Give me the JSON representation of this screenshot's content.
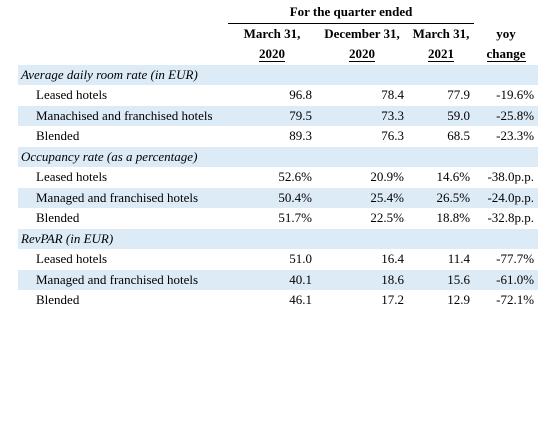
{
  "header": {
    "title": "For the quarter ended",
    "columns": [
      [
        "March 31,",
        "2020"
      ],
      [
        "December 31,",
        "2020"
      ],
      [
        "March 31,",
        "2021"
      ],
      [
        "yoy",
        "change"
      ]
    ]
  },
  "sections": [
    {
      "title": "Average daily room rate (in EUR)",
      "rows": [
        {
          "label": "Leased hotels",
          "values": [
            "96.8",
            "78.4",
            "77.9",
            "-19.6%"
          ]
        },
        {
          "label": "Manachised and franchised hotels",
          "values": [
            "79.5",
            "73.3",
            "59.0",
            "-25.8%"
          ]
        },
        {
          "label": "Blended",
          "values": [
            "89.3",
            "76.3",
            "68.5",
            "-23.3%"
          ]
        }
      ]
    },
    {
      "title": "Occupancy rate (as a percentage)",
      "rows": [
        {
          "label": "Leased hotels",
          "values": [
            "52.6%",
            "20.9%",
            "14.6%",
            "-38.0p.p."
          ]
        },
        {
          "label": "Managed and franchised hotels",
          "values": [
            "50.4%",
            "25.4%",
            "26.5%",
            "-24.0p.p."
          ]
        },
        {
          "label": "Blended",
          "values": [
            "51.7%",
            "22.5%",
            "18.8%",
            "-32.8p.p."
          ]
        }
      ]
    },
    {
      "title": "RevPAR (in EUR)",
      "rows": [
        {
          "label": "Leased hotels",
          "values": [
            "51.0",
            "16.4",
            "11.4",
            "-77.7%"
          ]
        },
        {
          "label": "Managed and franchised hotels",
          "values": [
            "40.1",
            "18.6",
            "15.6",
            "-61.0%"
          ]
        },
        {
          "label": "Blended",
          "values": [
            "46.1",
            "17.2",
            "12.9",
            "-72.1%"
          ]
        }
      ]
    }
  ]
}
